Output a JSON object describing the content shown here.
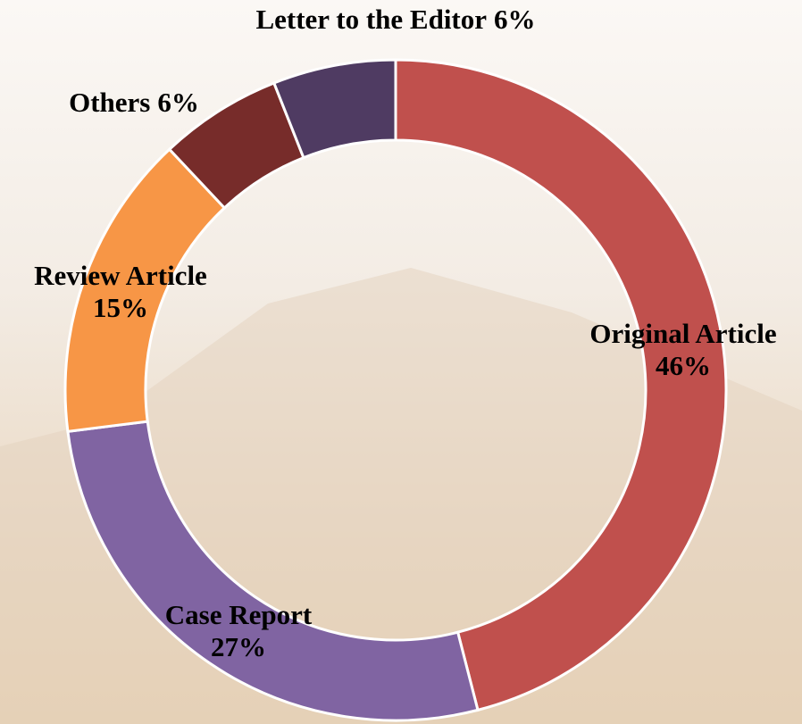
{
  "chart_data": {
    "type": "donut",
    "categories": [
      "Original Article",
      "Case Report",
      "Review Article",
      "Others",
      "Letter to the Editor"
    ],
    "values": [
      46,
      27,
      15,
      6,
      6
    ],
    "value_labels": [
      "46%",
      "27%",
      "15%",
      "6%",
      "6%"
    ],
    "colors": [
      "#c0504d",
      "#8064a2",
      "#f79646",
      "#772c2a",
      "#4f3b62"
    ]
  }
}
